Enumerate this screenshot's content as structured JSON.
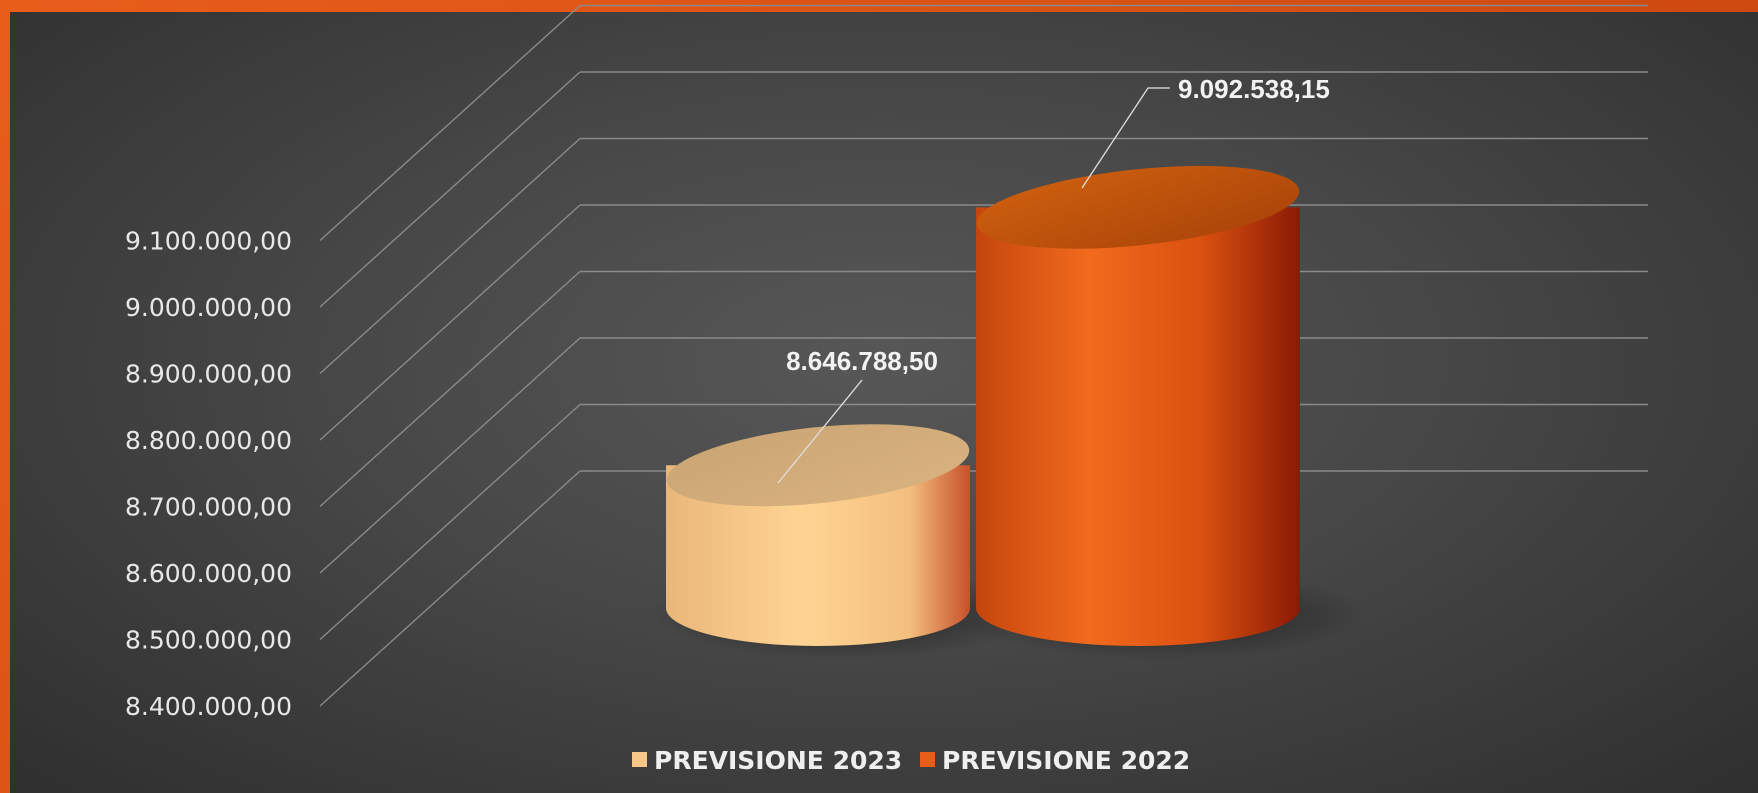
{
  "chart_data": {
    "type": "bar",
    "subtype": "3d-cylinder",
    "title": "",
    "xlabel": "",
    "ylabel": "",
    "ylim": [
      8400000,
      9100000
    ],
    "y_ticks": [
      "8.400.000,00",
      "8.500.000,00",
      "8.600.000,00",
      "8.700.000,00",
      "8.800.000,00",
      "8.900.000,00",
      "9.000.000,00",
      "9.100.000,00"
    ],
    "y_tick_values": [
      8400000,
      8500000,
      8600000,
      8700000,
      8800000,
      8900000,
      9000000,
      9100000
    ],
    "grid": true,
    "legend_position": "bottom-center",
    "series": [
      {
        "name": "PREVISIONE 2023",
        "value": 8646788.5,
        "label": "8.646.788,50",
        "color": "#f8c88a"
      },
      {
        "name": "PREVISIONE 2022",
        "value": 9092538.15,
        "label": "9.092.538,15",
        "color": "#e85d1a"
      }
    ]
  },
  "colors": {
    "frame": "#e85d1a",
    "background": "#474747",
    "gridline": "#8a8a8a",
    "text": "#e8e8e8"
  }
}
